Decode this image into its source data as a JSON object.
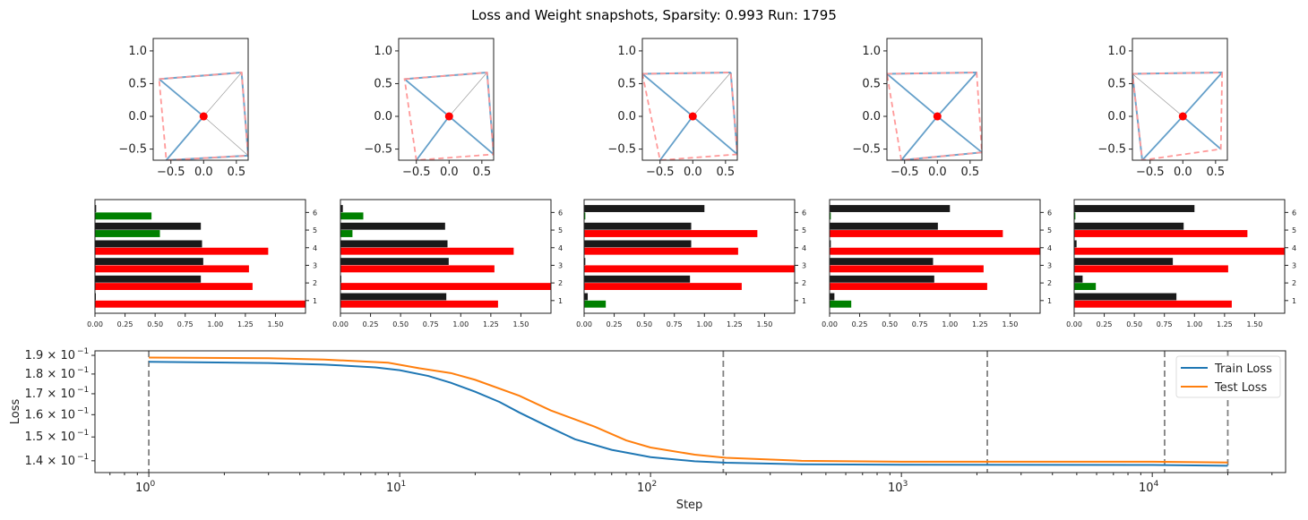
{
  "title": "Loss and Weight snapshots, Sparsity: 0.993  Run: 1795",
  "colors": {
    "train": "#1f77b4",
    "test": "#ff7f0e",
    "spoke": "#4a8fc0",
    "red_dashed": "#ff9999",
    "black_bar": "#1a1a1a",
    "red_bar": "#ff0000",
    "green_bar": "#008000",
    "vline": "#808080"
  },
  "chart_data": [
    {
      "type": "scatter",
      "panel": "weight-snapshots",
      "xlim": [
        -0.77,
        0.68
      ],
      "ylim": [
        -0.67,
        1.19
      ],
      "xticks": [
        "−0.5",
        "0.0",
        "0.5"
      ],
      "yticks": [
        "−0.5",
        "0.0",
        "0.5",
        "1.0"
      ],
      "snapshots": [
        {
          "vertices": [
            [
              -0.68,
              0.57
            ],
            [
              0.58,
              0.67
            ],
            [
              0.68,
              -0.6
            ],
            [
              -0.57,
              -0.67
            ]
          ],
          "blue_spokes": [
            0,
            3
          ],
          "gray_spokes": [
            1,
            2
          ],
          "blue_edges": [
            [
              0,
              1
            ],
            [
              1,
              2
            ],
            [
              2,
              3
            ]
          ]
        },
        {
          "vertices": [
            [
              -0.68,
              0.57
            ],
            [
              0.58,
              0.67
            ],
            [
              0.68,
              -0.58
            ],
            [
              -0.5,
              -0.67
            ]
          ],
          "blue_spokes": [
            0,
            2,
            3
          ],
          "gray_spokes": [
            1
          ],
          "blue_edges": [
            [
              0,
              1
            ],
            [
              1,
              2
            ]
          ]
        },
        {
          "vertices": [
            [
              -0.77,
              0.65
            ],
            [
              0.58,
              0.67
            ],
            [
              0.68,
              -0.58
            ],
            [
              -0.5,
              -0.67
            ]
          ],
          "blue_spokes": [
            0,
            2,
            3
          ],
          "gray_spokes": [
            1
          ],
          "blue_edges": [
            [
              0,
              1
            ],
            [
              1,
              2
            ]
          ]
        },
        {
          "vertices": [
            [
              -0.77,
              0.65
            ],
            [
              0.6,
              0.67
            ],
            [
              0.68,
              -0.55
            ],
            [
              -0.55,
              -0.67
            ]
          ],
          "blue_spokes": [
            0,
            1,
            2,
            3
          ],
          "gray_spokes": [],
          "blue_edges": [
            [
              0,
              1
            ],
            [
              2,
              3
            ]
          ]
        },
        {
          "vertices": [
            [
              -0.77,
              0.65
            ],
            [
              0.6,
              0.67
            ],
            [
              0.58,
              -0.5
            ],
            [
              -0.62,
              -0.67
            ]
          ],
          "blue_spokes": [
            1,
            2,
            3
          ],
          "gray_spokes": [
            0
          ],
          "blue_edges": [
            [
              0,
              1
            ],
            [
              0,
              3
            ]
          ]
        }
      ]
    },
    {
      "type": "bar",
      "panel": "feature-norms",
      "orientation": "horizontal",
      "categories": [
        "1",
        "2",
        "3",
        "4",
        "5",
        "6"
      ],
      "xlim": [
        0,
        1.75
      ],
      "xticks": [
        "0.00",
        "0.25",
        "0.50",
        "0.75",
        "1.00",
        "1.25",
        "1.50"
      ],
      "snapshots": [
        {
          "black": [
            0.005,
            0.88,
            0.9,
            0.89,
            0.88,
            0.01
          ],
          "colored": [
            1.75,
            1.31,
            1.28,
            1.44,
            0.54,
            0.47
          ],
          "colors": [
            "red",
            "red",
            "red",
            "red",
            "green",
            "green"
          ]
        },
        {
          "black": [
            0.88,
            0.005,
            0.9,
            0.89,
            0.87,
            0.02
          ],
          "colored": [
            1.31,
            1.75,
            1.28,
            1.44,
            0.1,
            0.19
          ],
          "colors": [
            "red",
            "red",
            "red",
            "red",
            "green",
            "green"
          ]
        },
        {
          "black": [
            0.03,
            0.88,
            0.01,
            0.89,
            0.89,
            1.0
          ],
          "colored": [
            0.18,
            1.31,
            1.75,
            1.28,
            1.44,
            0.01
          ],
          "colors": [
            "green",
            "red",
            "red",
            "red",
            "red",
            "green"
          ]
        },
        {
          "black": [
            0.04,
            0.87,
            0.86,
            0.01,
            0.9,
            1.0
          ],
          "colored": [
            0.18,
            1.31,
            1.28,
            1.75,
            1.44,
            0.01
          ],
          "colors": [
            "green",
            "red",
            "red",
            "red",
            "red",
            "green"
          ]
        },
        {
          "black": [
            0.85,
            0.07,
            0.82,
            0.02,
            0.91,
            1.0
          ],
          "colored": [
            1.31,
            0.18,
            1.28,
            1.75,
            1.44,
            0.01
          ],
          "colors": [
            "red",
            "green",
            "red",
            "red",
            "red",
            "green"
          ]
        }
      ]
    },
    {
      "type": "line",
      "panel": "loss",
      "xlabel": "Step",
      "ylabel": "Loss",
      "xscale": "log",
      "yscale": "log",
      "xlim": [
        0.61,
        34000
      ],
      "ylim": [
        0.1353,
        0.1925
      ],
      "xticks": [
        {
          "v": 1,
          "b": "10",
          "e": "0"
        },
        {
          "v": 10,
          "b": "10",
          "e": "1"
        },
        {
          "v": 100,
          "b": "10",
          "e": "2"
        },
        {
          "v": 1000,
          "b": "10",
          "e": "3"
        },
        {
          "v": 10000,
          "b": "10",
          "e": "4"
        }
      ],
      "yticks": [
        {
          "v": 0.19,
          "m": "1.9"
        },
        {
          "v": 0.18,
          "m": "1.8"
        },
        {
          "v": 0.17,
          "m": "1.7"
        },
        {
          "v": 0.16,
          "m": "1.6"
        },
        {
          "v": 0.15,
          "m": "1.5"
        },
        {
          "v": 0.14,
          "m": "1.4"
        }
      ],
      "ytick_suffix": "× 10",
      "ytick_exp": "−1",
      "snapshot_steps": [
        1,
        195,
        2200,
        11200,
        20000
      ],
      "legend": "top-right",
      "series": [
        {
          "name": "Train Loss",
          "color": "#1f77b4",
          "x": [
            1,
            3,
            5,
            8,
            10,
            13,
            16,
            20,
            25,
            30,
            40,
            50,
            70,
            100,
            150,
            200,
            400,
            1000,
            10000,
            20000
          ],
          "y": [
            0.1865,
            0.1858,
            0.185,
            0.1835,
            0.182,
            0.179,
            0.1755,
            0.171,
            0.166,
            0.161,
            0.154,
            0.149,
            0.1445,
            0.1415,
            0.1398,
            0.1392,
            0.1386,
            0.1384,
            0.1383,
            0.138
          ]
        },
        {
          "name": "Test Loss",
          "color": "#ff7f0e",
          "x": [
            1,
            3,
            5,
            9,
            12,
            16,
            20,
            30,
            40,
            60,
            80,
            100,
            150,
            200,
            400,
            1000,
            10000,
            20000
          ],
          "y": [
            0.1888,
            0.1884,
            0.1877,
            0.186,
            0.183,
            0.1805,
            0.177,
            0.169,
            0.162,
            0.1545,
            0.1485,
            0.1455,
            0.1425,
            0.1412,
            0.14,
            0.1396,
            0.1396,
            0.1393
          ]
        }
      ]
    }
  ]
}
